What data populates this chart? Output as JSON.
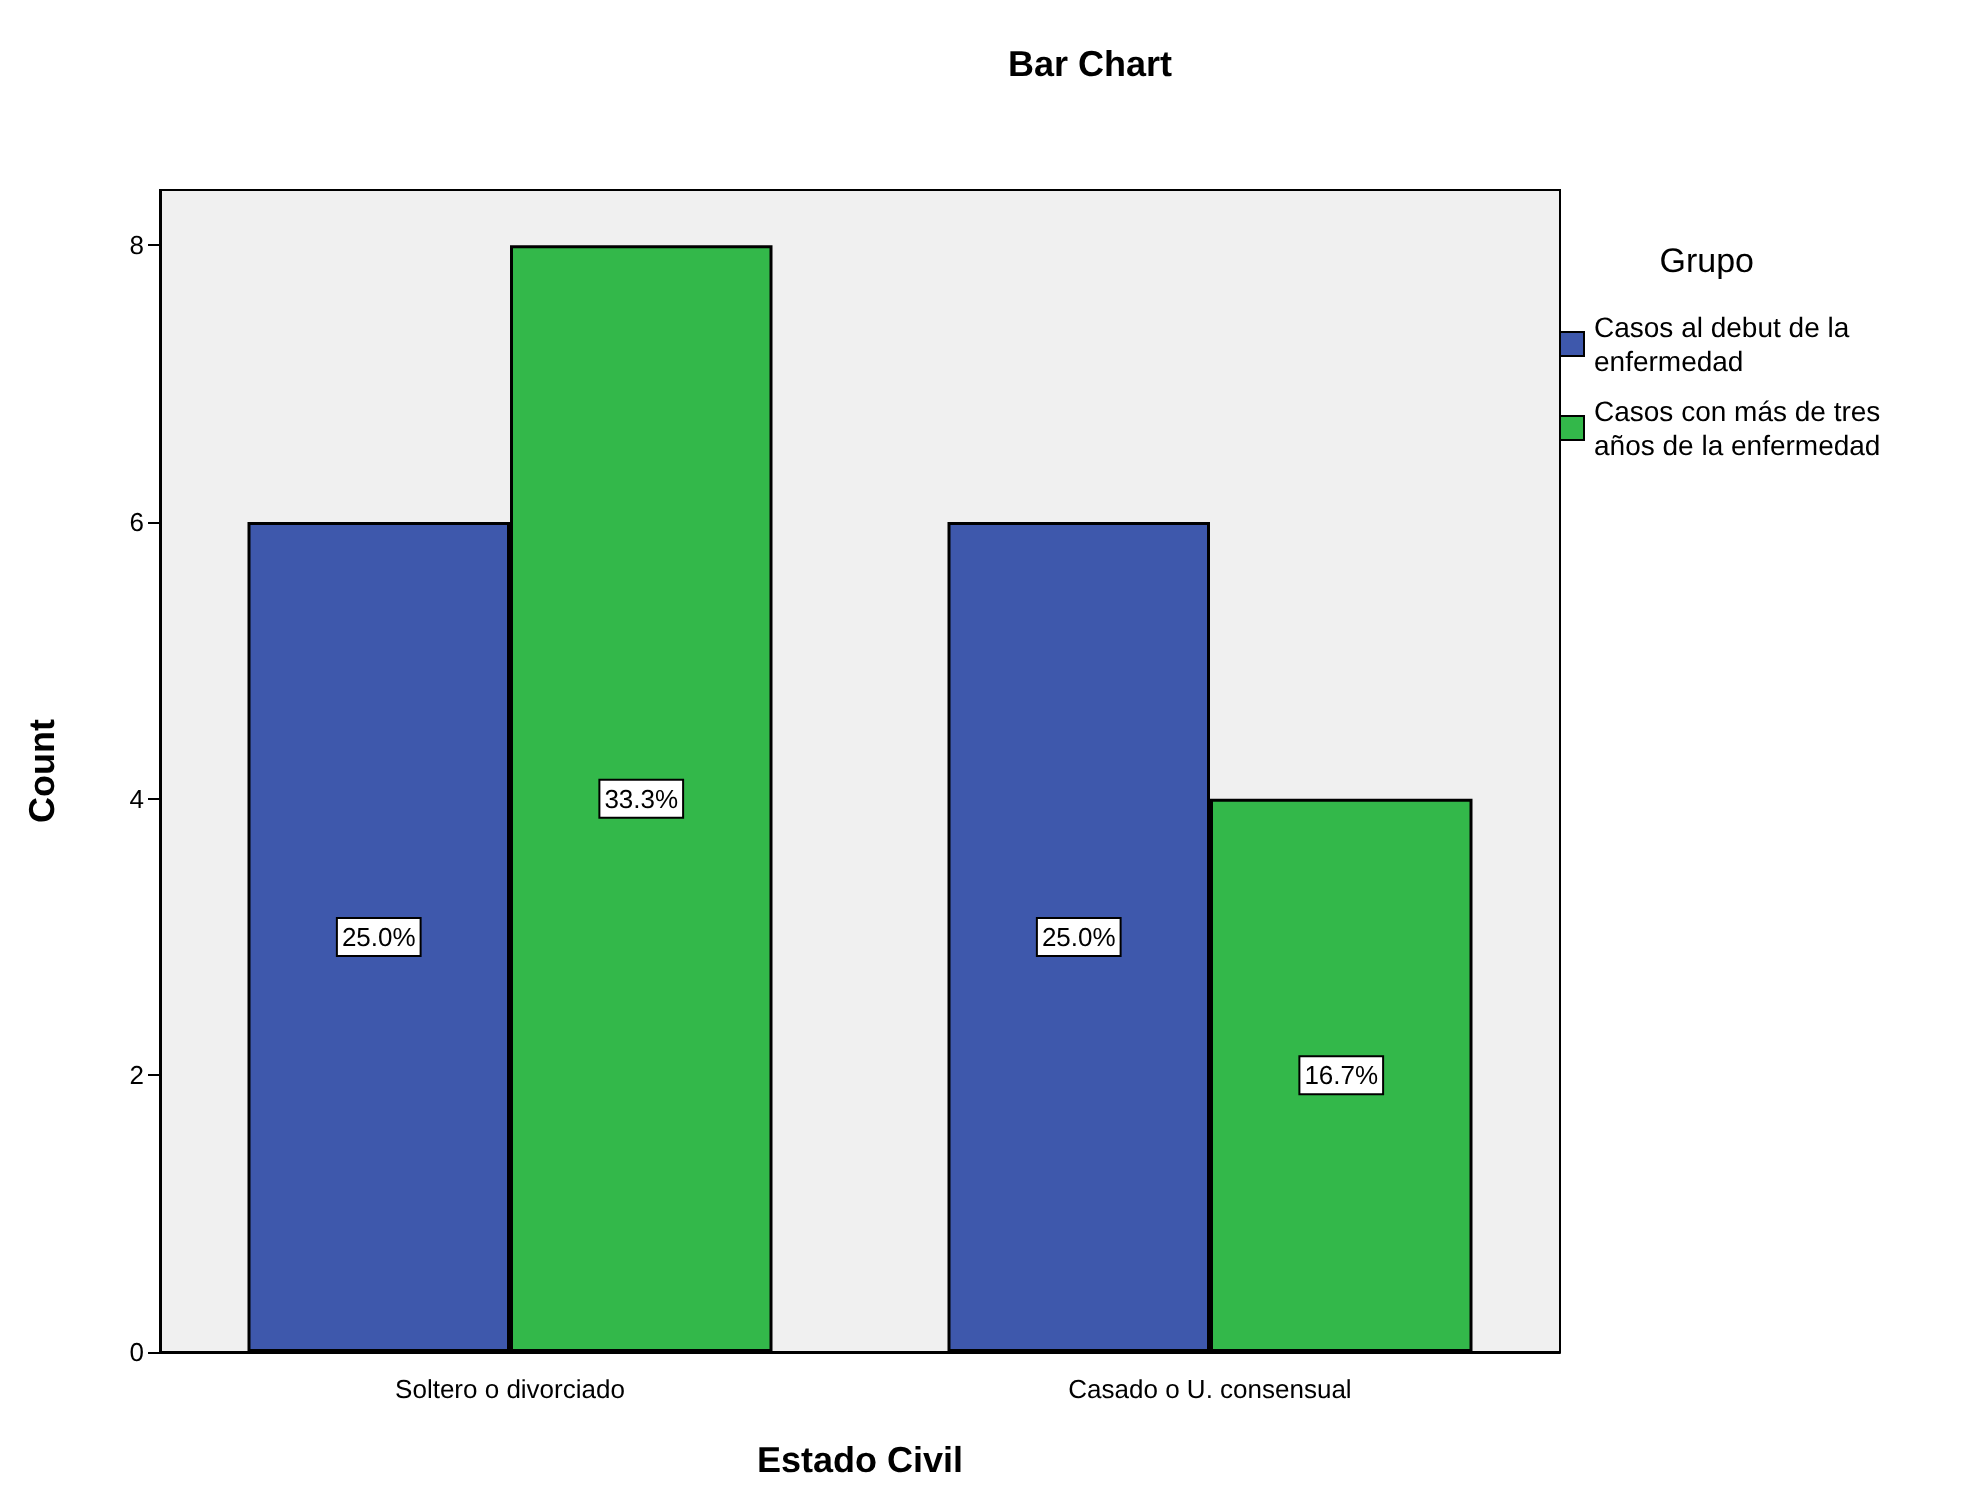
{
  "chart_data": {
    "type": "bar",
    "title": "Bar Chart",
    "xlabel": "Estado Civil",
    "ylabel": "Count",
    "legend_title": "Grupo",
    "categories": [
      "Soltero o divorciado",
      "Casado o U. consensual"
    ],
    "series": [
      {
        "name": "Casos al debut de la enfermedad",
        "color": "#3e58ac",
        "values": [
          6,
          6
        ]
      },
      {
        "name": "Casos con más de tres años de la enfermedad",
        "color": "#33b84a",
        "values": [
          8,
          4
        ]
      }
    ],
    "annotations": [
      "25.0%",
      "33.3%",
      "25.0%",
      "16.7%"
    ],
    "ylim": [
      0,
      8.4
    ],
    "yticks": [
      0,
      2,
      4,
      6,
      8
    ],
    "grid": false,
    "legend": "top right"
  }
}
